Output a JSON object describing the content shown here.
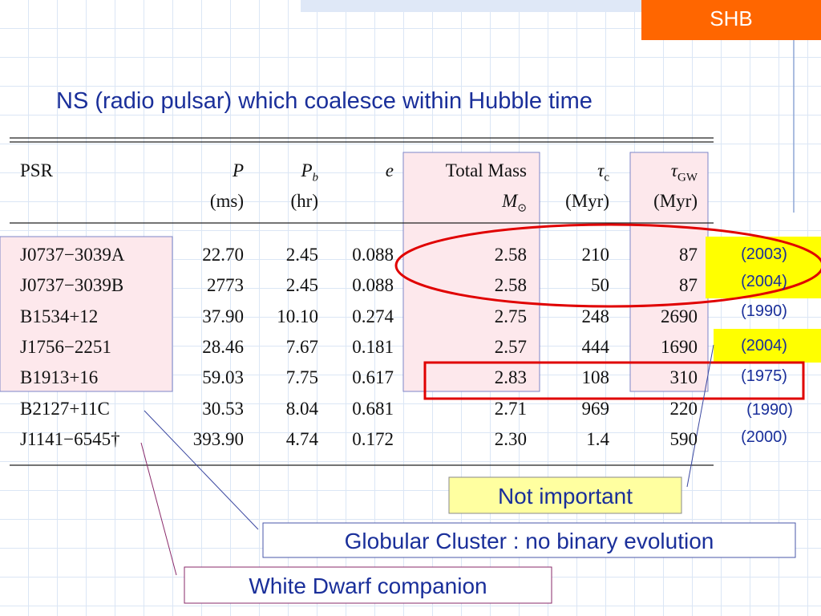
{
  "header": {
    "tag": "SHB"
  },
  "title": "NS (radio pulsar) which coalesce within Hubble time",
  "table": {
    "columns": [
      {
        "label": "PSR"
      },
      {
        "label": "P",
        "unit": "(ms)"
      },
      {
        "label": "P",
        "sub": "b",
        "unit": "(hr)"
      },
      {
        "label": "e"
      },
      {
        "label": "Total Mass",
        "unit": "M",
        "unit_sub": "⊙"
      },
      {
        "label": "τ",
        "sub": "c",
        "unit": "(Myr)"
      },
      {
        "label": "τ",
        "sub": "GW",
        "unit": "(Myr)"
      }
    ],
    "rows": [
      [
        "J0737−3039A",
        "22.70",
        "2.45",
        "0.088",
        "2.58",
        "210",
        "87"
      ],
      [
        "J0737−3039B",
        "2773",
        "2.45",
        "0.088",
        "2.58",
        "50",
        "87"
      ],
      [
        "B1534+12",
        "37.90",
        "10.10",
        "0.274",
        "2.75",
        "248",
        "2690"
      ],
      [
        "J1756−2251",
        "28.46",
        "7.67",
        "0.181",
        "2.57",
        "444",
        "1690"
      ],
      [
        "B1913+16",
        "59.03",
        "7.75",
        "0.617",
        "2.83",
        "108",
        "310"
      ],
      [
        "B2127+11C",
        "30.53",
        "8.04",
        "0.681",
        "2.71",
        "969",
        "220"
      ],
      [
        "J1141−6545†",
        "393.90",
        "4.74",
        "0.172",
        "2.30",
        "1.4",
        "590"
      ]
    ]
  },
  "years": [
    "(2003)",
    "(2004)",
    "(1990)",
    "(2004)",
    "(1975)",
    "(1990)",
    "(2000)"
  ],
  "notes": {
    "not_important": "Not important",
    "globular": "Globular Cluster : no binary evolution",
    "white_dwarf": "White Dwarf companion"
  }
}
